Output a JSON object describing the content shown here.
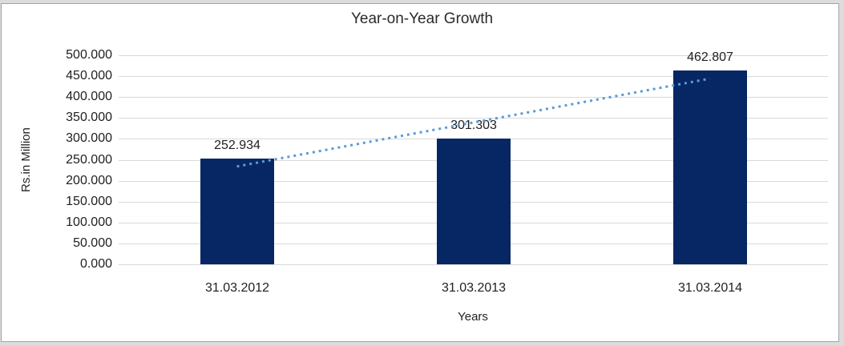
{
  "chart_data": {
    "type": "bar",
    "title": "Year-on-Year Growth",
    "xlabel": "Years",
    "ylabel": "Rs.in Million",
    "categories": [
      "31.03.2012",
      "31.03.2013",
      "31.03.2014"
    ],
    "values": [
      252.934,
      301.303,
      462.807
    ],
    "data_labels": [
      "252.934",
      "301.303",
      "462.807"
    ],
    "ylim": [
      0,
      500
    ],
    "y_tick_values": [
      500,
      450,
      400,
      350,
      300,
      250,
      200,
      150,
      100,
      50,
      0
    ],
    "y_tick_labels": [
      "500.000",
      "450.000",
      "400.000",
      "350.000",
      "300.000",
      "250.000",
      "200.000",
      "150.000",
      "100.000",
      "50.000",
      "0.000"
    ],
    "grid": true,
    "legend": false,
    "trendline": {
      "type": "linear",
      "style": "dotted",
      "start_value": 234.1,
      "end_value": 444.0
    }
  },
  "colors": {
    "bar": "#062664",
    "trendline": "#5b9bd5",
    "gridline": "#d9d9d9",
    "text": "#1f1f1f",
    "frame_border": "#a3a3a3",
    "outer_band": "#dcdcdc"
  }
}
